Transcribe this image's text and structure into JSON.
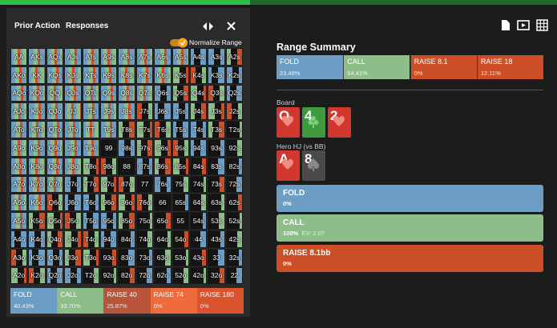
{
  "header": {
    "tabs": [
      "Prior Action",
      "Responses"
    ],
    "toggle": "Normalize Range"
  },
  "grid": {
    "rows": [
      [
        "AA",
        "AKs",
        "AQs",
        "AJs",
        "ATs",
        "A9s",
        "A8s",
        "A7s",
        "A6s",
        "A5s",
        "A4s",
        "A3s",
        "A2s"
      ],
      [
        "AKo",
        "KK",
        "KQs",
        "KJs",
        "KTs",
        "K9s",
        "K8s",
        "K7s",
        "K6s",
        "K5s",
        "K4s",
        "K3s",
        "K2s"
      ],
      [
        "AQo",
        "KQo",
        "QQ",
        "QJs",
        "QTs",
        "Q9s",
        "Q8s",
        "Q7s",
        "Q6s",
        "Q5s",
        "Q4s",
        "Q3s",
        "Q2s"
      ],
      [
        "AJo",
        "KJo",
        "QJo",
        "JJ",
        "JTs",
        "J9s",
        "J8s",
        "J7s",
        "J6s",
        "J5s",
        "J4s",
        "J3s",
        "J2s"
      ],
      [
        "ATo",
        "KTo",
        "QTo",
        "JTo",
        "TT",
        "T9s",
        "T8s",
        "T7s",
        "T6s",
        "T5s",
        "T4s",
        "T3s",
        "T2s"
      ],
      [
        "A9o",
        "K9o",
        "Q9o",
        "J9o",
        "T9o",
        "99",
        "98s",
        "97s",
        "96s",
        "95s",
        "94s",
        "93s",
        "92s"
      ],
      [
        "A8o",
        "K8o",
        "Q8o",
        "J8o",
        "T8o",
        "98o",
        "88",
        "87s",
        "86s",
        "85s",
        "84s",
        "83s",
        "82s"
      ],
      [
        "A7o",
        "K7o",
        "Q7o",
        "J7o",
        "T7o",
        "97o",
        "87o",
        "77",
        "76s",
        "75s",
        "74s",
        "73s",
        "72s"
      ],
      [
        "A6o",
        "K6o",
        "Q6o",
        "J6o",
        "T6o",
        "96o",
        "86o",
        "76o",
        "66",
        "65s",
        "64s",
        "63s",
        "62s"
      ],
      [
        "A5o",
        "K5o",
        "Q5o",
        "J5o",
        "T5o",
        "95o",
        "85o",
        "75o",
        "65o",
        "55",
        "54s",
        "53s",
        "52s"
      ],
      [
        "A4o",
        "K4o",
        "Q4o",
        "J4o",
        "T4o",
        "94o",
        "84o",
        "74o",
        "64o",
        "54o",
        "44",
        "43s",
        "42s"
      ],
      [
        "A3o",
        "K3o",
        "Q3o",
        "J3o",
        "T3o",
        "93o",
        "83o",
        "73o",
        "63o",
        "53o",
        "43o",
        "33",
        "32s"
      ],
      [
        "A2o",
        "K2o",
        "Q2o",
        "J2o",
        "T2o",
        "92o",
        "82o",
        "72o",
        "62o",
        "52o",
        "42o",
        "32o",
        "22"
      ]
    ],
    "legend": [
      {
        "label": "FOLD",
        "value": "40.43%"
      },
      {
        "label": "CALL",
        "value": "33.70%"
      },
      {
        "label": "RAISE 40",
        "value": "25.87%"
      },
      {
        "label": "RAISE 74",
        "value": "0%"
      },
      {
        "label": "RAISE 180",
        "value": "0%"
      }
    ]
  },
  "summary": {
    "title": "Range Summary",
    "items": [
      {
        "label": "FOLD",
        "value": "23.48%"
      },
      {
        "label": "CALL",
        "value": "64.41%"
      },
      {
        "label": "RAISE 8.1",
        "value": "0%"
      },
      {
        "label": "RAISE 18",
        "value": "12.11%"
      }
    ]
  },
  "board": {
    "label": "Board",
    "cards": [
      "Q",
      "4",
      "2"
    ]
  },
  "hero": {
    "label": "Hero HJ (vs BB)",
    "cards": [
      "A",
      "8"
    ]
  },
  "actions": [
    {
      "label": "FOLD",
      "value": "0%"
    },
    {
      "label": "CALL",
      "value": "100%",
      "ev": "EV: 2.07"
    },
    {
      "label": "RAISE 8.1bb",
      "value": "0%"
    }
  ]
}
